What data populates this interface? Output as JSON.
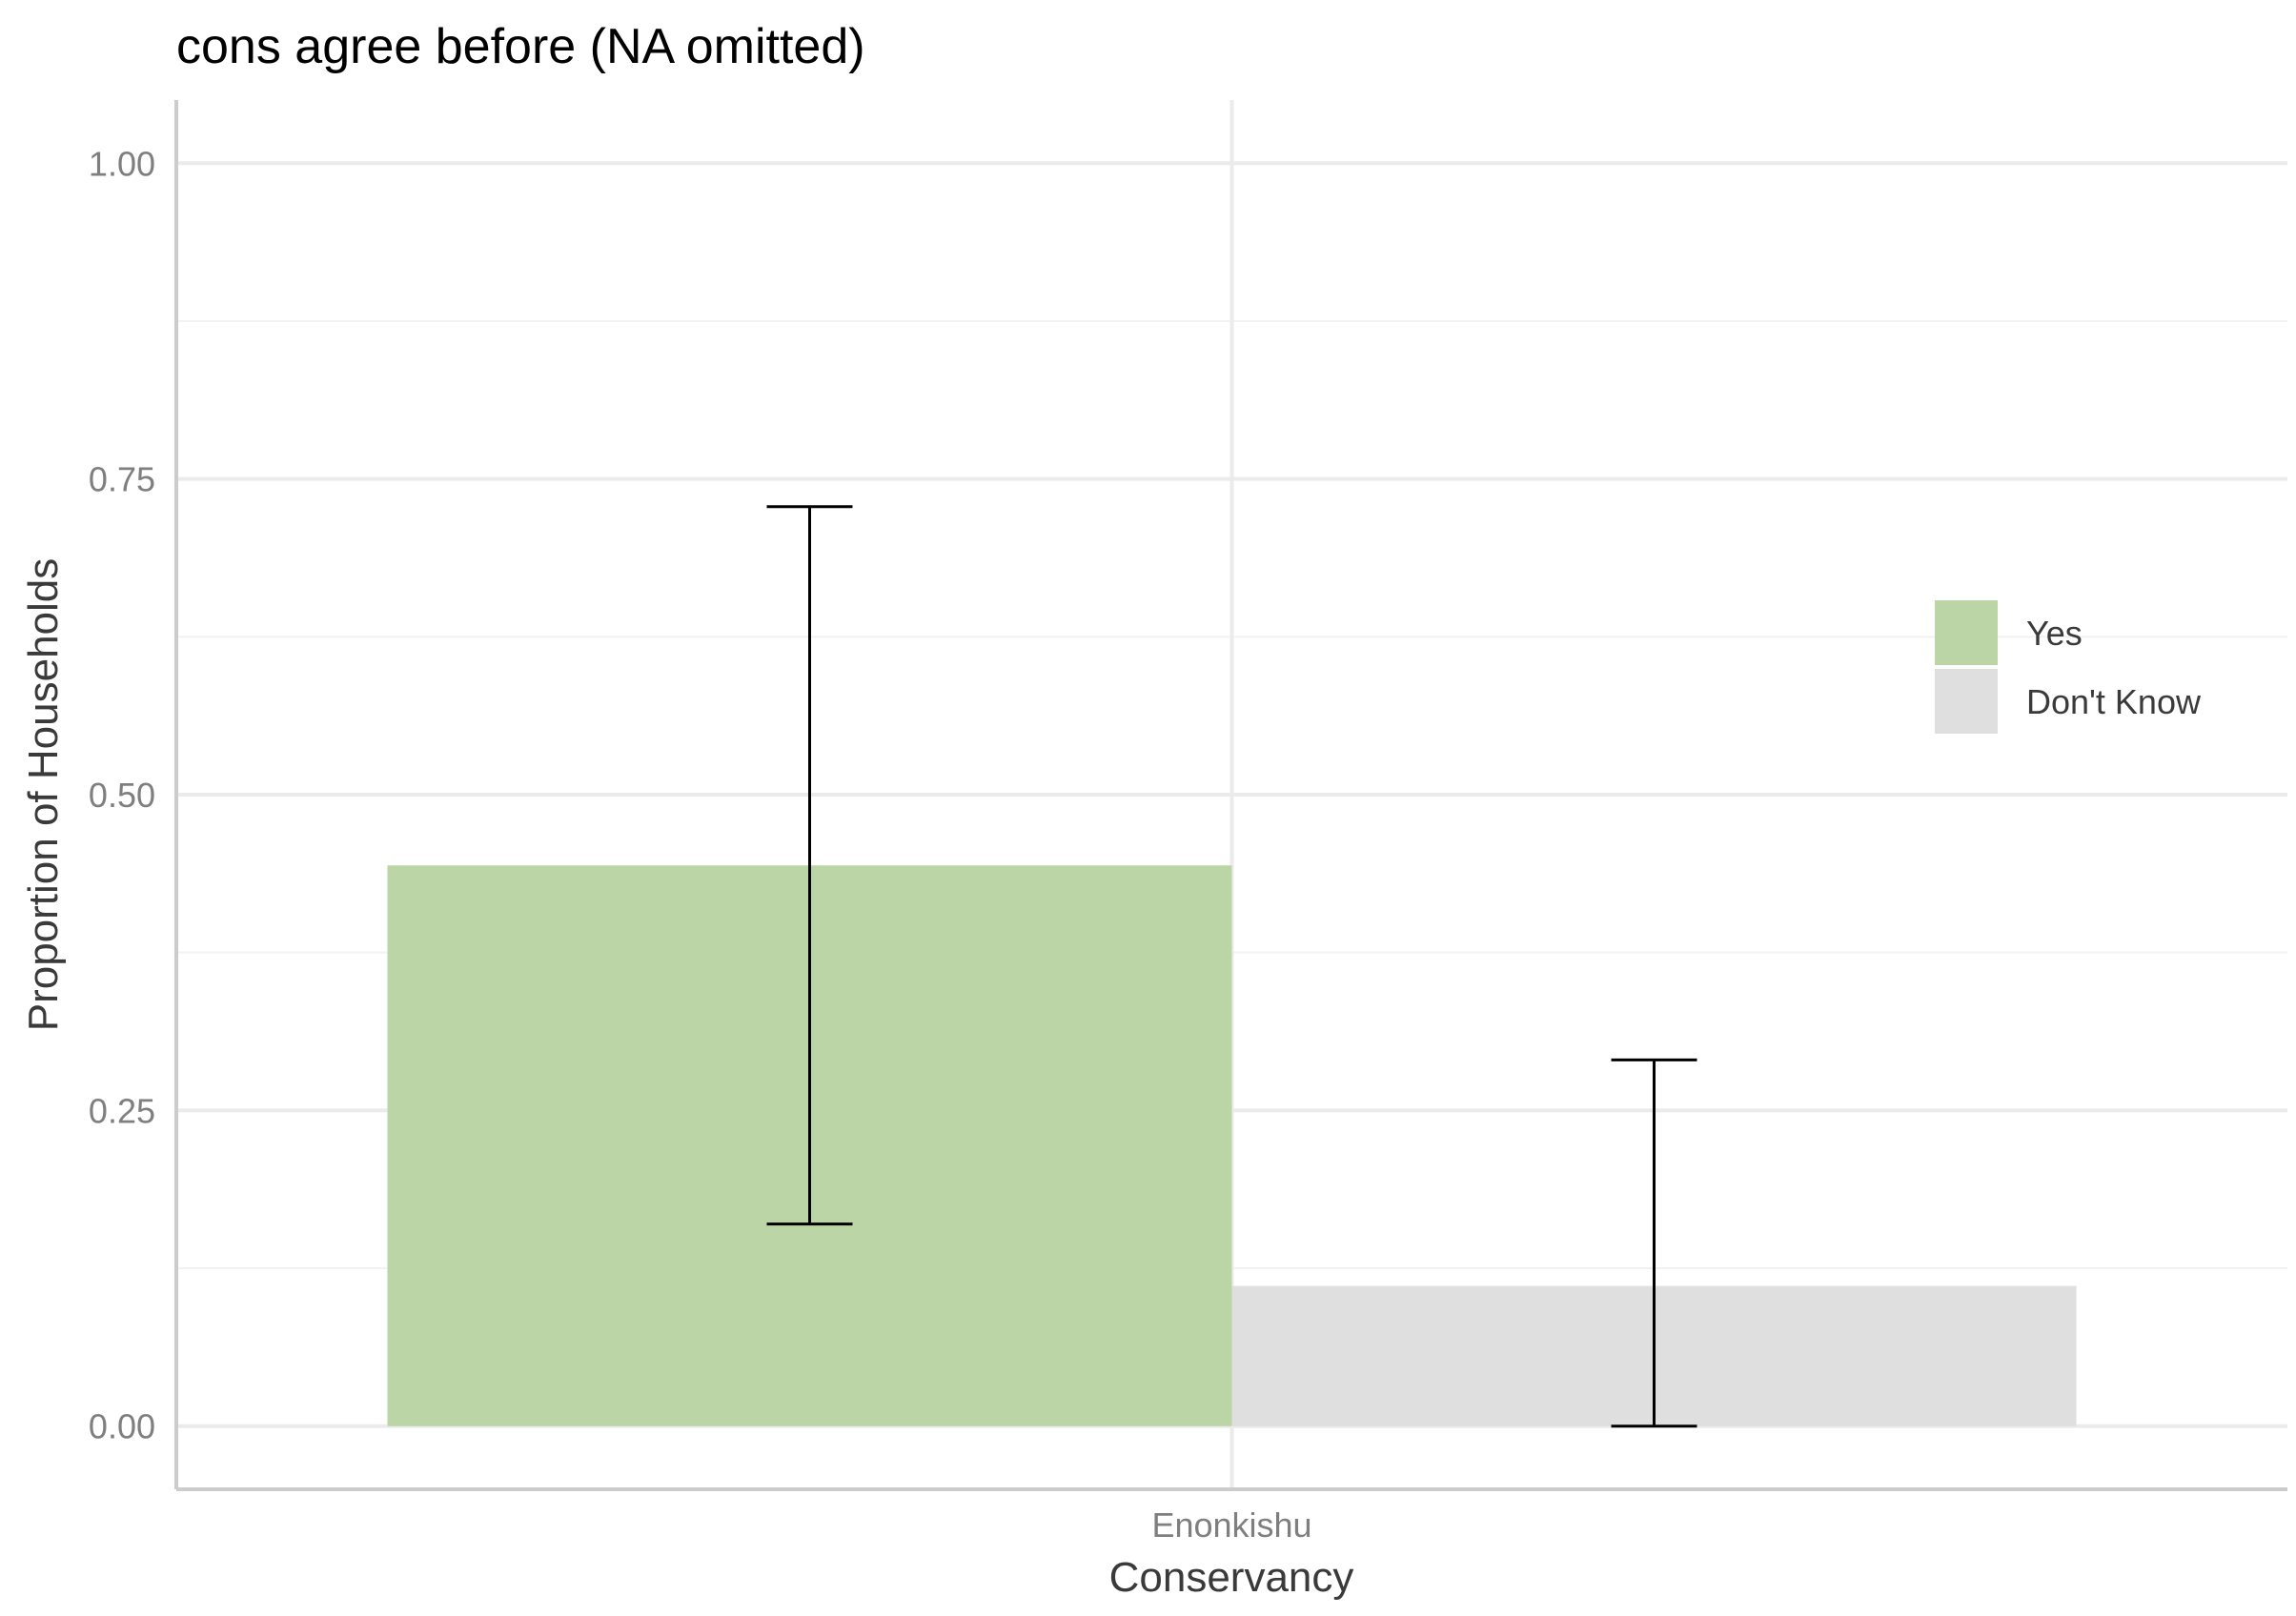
{
  "chart_data": {
    "type": "bar",
    "title": "cons agree before (NA omitted)",
    "xlabel": "Conservancy",
    "ylabel": "Proportion of Households",
    "categories": [
      "Enonkishu"
    ],
    "series": [
      {
        "name": "Yes",
        "values": [
          0.444
        ],
        "error_low": [
          0.16
        ],
        "error_high": [
          0.728
        ],
        "color": "#bbd5a6"
      },
      {
        "name": "Don't Know",
        "values": [
          0.111
        ],
        "error_low": [
          0.0
        ],
        "error_high": [
          0.29
        ],
        "color": "#dfdfdf"
      }
    ],
    "ylim": [
      -0.05,
      1.05
    ],
    "yticks": [
      "0.00",
      "0.25",
      "0.50",
      "0.75",
      "1.00"
    ],
    "ytick_values": [
      0,
      0.25,
      0.5,
      0.75,
      1.0
    ],
    "grid": true,
    "legend_position": "right"
  }
}
